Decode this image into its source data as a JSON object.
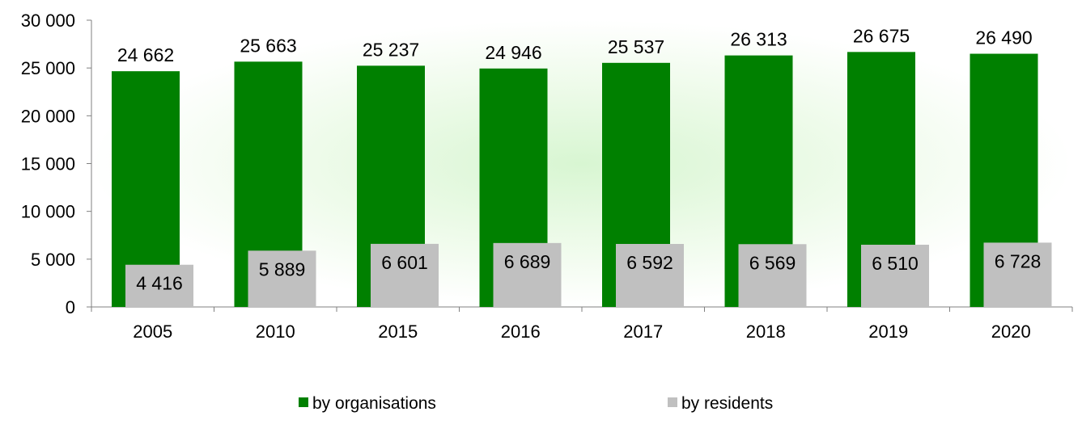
{
  "chart_data": {
    "type": "bar",
    "categories": [
      "2005",
      "2010",
      "2015",
      "2016",
      "2017",
      "2018",
      "2019",
      "2020"
    ],
    "series": [
      {
        "name": "by organisations",
        "color": "#008000",
        "values": [
          24662,
          25663,
          25237,
          24946,
          25537,
          26313,
          26675,
          26490
        ]
      },
      {
        "name": "by residents",
        "color": "#c0c0c0",
        "values": [
          4416,
          5889,
          6601,
          6689,
          6592,
          6569,
          6510,
          6728
        ]
      }
    ],
    "data_labels": {
      "by_organisations": [
        "24 662",
        "25 663",
        "25 237",
        "24 946",
        "25 537",
        "26 313",
        "26 675",
        "26 490"
      ],
      "by_residents": [
        "4 416",
        "5 889",
        "6 601",
        "6 689",
        "6 592",
        "6 569",
        "6 510",
        "6 728"
      ]
    },
    "y_ticks": [
      0,
      5000,
      10000,
      15000,
      20000,
      25000,
      30000
    ],
    "y_tick_labels": [
      "0",
      "5 000",
      "10 000",
      "15 000",
      "20 000",
      "25 000",
      "30 000"
    ],
    "ylim": [
      0,
      30000
    ],
    "overlapping_bars": true,
    "grid": false,
    "legend_position": "bottom",
    "background": "radial-green-glow"
  }
}
